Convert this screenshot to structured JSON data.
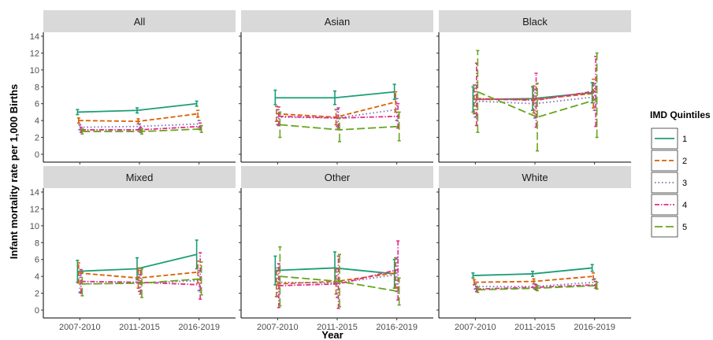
{
  "chart_data": {
    "type": "line",
    "xlabel": "Year",
    "ylabel": "Infant mortality rate per 1,000 Births",
    "ylim": [
      0,
      14
    ],
    "yticks": [
      0,
      2,
      4,
      6,
      8,
      10,
      12,
      14
    ],
    "categories": [
      "2007-2010",
      "2011-2015",
      "2016-2019"
    ],
    "legend": {
      "title": "IMD Quintiles",
      "position": "right",
      "entries": [
        "1",
        "2",
        "3",
        "4",
        "5"
      ]
    },
    "series_styles": [
      {
        "color": "#1b9e77",
        "dash": ""
      },
      {
        "color": "#d95f02",
        "dash": "6,3"
      },
      {
        "color": "#7570b3",
        "dash": "1.5,3"
      },
      {
        "color": "#e7298a",
        "dash": "6,2,1.5,2"
      },
      {
        "color": "#66a61e",
        "dash": "10,4"
      }
    ],
    "panels": [
      {
        "title": "All",
        "series": [
          {
            "name": "1",
            "values": [
              5.0,
              5.2,
              6.0
            ],
            "lower": [
              4.7,
              4.9,
              5.7
            ],
            "upper": [
              5.3,
              5.5,
              6.3
            ]
          },
          {
            "name": "2",
            "values": [
              4.0,
              3.9,
              4.8
            ],
            "lower": [
              3.7,
              3.6,
              4.4
            ],
            "upper": [
              4.3,
              4.2,
              5.2
            ]
          },
          {
            "name": "3",
            "values": [
              3.2,
              3.3,
              3.6
            ],
            "lower": [
              2.9,
              3.0,
              3.2
            ],
            "upper": [
              3.5,
              3.6,
              4.0
            ]
          },
          {
            "name": "4",
            "values": [
              2.9,
              2.9,
              3.3
            ],
            "lower": [
              2.6,
              2.6,
              2.9
            ],
            "upper": [
              3.2,
              3.2,
              3.7
            ]
          },
          {
            "name": "5",
            "values": [
              2.7,
              2.7,
              3.0
            ],
            "lower": [
              2.4,
              2.4,
              2.6
            ],
            "upper": [
              3.0,
              3.0,
              3.4
            ]
          }
        ]
      },
      {
        "title": "Asian",
        "series": [
          {
            "name": "1",
            "values": [
              6.7,
              6.7,
              7.4
            ],
            "lower": [
              5.9,
              5.9,
              6.5
            ],
            "upper": [
              7.6,
              7.5,
              8.3
            ]
          },
          {
            "name": "2",
            "values": [
              4.8,
              4.4,
              6.2
            ],
            "lower": [
              3.9,
              3.5,
              5.0
            ],
            "upper": [
              5.7,
              5.3,
              7.4
            ]
          },
          {
            "name": "3",
            "values": [
              4.4,
              4.3,
              5.3
            ],
            "lower": [
              3.5,
              3.3,
              4.0
            ],
            "upper": [
              5.3,
              5.3,
              6.6
            ]
          },
          {
            "name": "4",
            "values": [
              4.5,
              4.3,
              4.5
            ],
            "lower": [
              3.4,
              3.1,
              3.1
            ],
            "upper": [
              5.6,
              5.5,
              6.0
            ]
          },
          {
            "name": "5",
            "values": [
              3.5,
              2.9,
              3.3
            ],
            "lower": [
              2.0,
              1.5,
              1.6
            ],
            "upper": [
              5.0,
              4.3,
              5.0
            ]
          }
        ]
      },
      {
        "title": "Black",
        "series": [
          {
            "name": "1",
            "values": [
              6.5,
              6.6,
              7.3
            ],
            "lower": [
              5.0,
              5.2,
              6.1
            ],
            "upper": [
              8.0,
              8.0,
              8.5
            ]
          },
          {
            "name": "2",
            "values": [
              6.5,
              6.5,
              7.2
            ],
            "lower": [
              4.8,
              4.9,
              5.5
            ],
            "upper": [
              8.2,
              8.1,
              8.9
            ]
          },
          {
            "name": "3",
            "values": [
              6.3,
              6.0,
              6.8
            ],
            "lower": [
              4.4,
              4.3,
              5.2
            ],
            "upper": [
              8.2,
              7.7,
              8.4
            ]
          },
          {
            "name": "4",
            "values": [
              6.6,
              6.4,
              7.5
            ],
            "lower": [
              3.4,
              3.2,
              3.3
            ],
            "upper": [
              10.8,
              9.6,
              11.6
            ]
          },
          {
            "name": "5",
            "values": [
              7.4,
              4.4,
              6.5
            ],
            "lower": [
              2.6,
              0.4,
              2.0
            ],
            "upper": [
              12.3,
              8.4,
              12.0
            ]
          }
        ]
      },
      {
        "title": "Mixed",
        "series": [
          {
            "name": "1",
            "values": [
              4.6,
              4.9,
              6.6
            ],
            "lower": [
              3.3,
              3.6,
              4.9
            ],
            "upper": [
              5.9,
              6.2,
              8.3
            ]
          },
          {
            "name": "2",
            "values": [
              4.4,
              3.8,
              4.5
            ],
            "lower": [
              3.2,
              2.6,
              3.2
            ],
            "upper": [
              5.6,
              5.0,
              5.8
            ]
          },
          {
            "name": "3",
            "values": [
              3.1,
              3.2,
              3.5
            ],
            "lower": [
              2.1,
              2.2,
              2.3
            ],
            "upper": [
              4.1,
              4.2,
              4.7
            ]
          },
          {
            "name": "4",
            "values": [
              3.4,
              3.3,
              3.0
            ],
            "lower": [
              2.0,
              1.9,
              1.3
            ],
            "upper": [
              4.8,
              4.7,
              6.8
            ]
          },
          {
            "name": "5",
            "values": [
              3.1,
              3.2,
              3.7
            ],
            "lower": [
              1.7,
              1.5,
              1.8
            ],
            "upper": [
              4.5,
              4.9,
              5.7
            ]
          }
        ]
      },
      {
        "title": "Other",
        "series": [
          {
            "name": "1",
            "values": [
              4.7,
              5.0,
              4.3
            ],
            "lower": [
              3.0,
              3.2,
              2.6
            ],
            "upper": [
              6.4,
              6.9,
              6.0
            ]
          },
          {
            "name": "2",
            "values": [
              3.1,
              3.4,
              4.4
            ],
            "lower": [
              1.6,
              1.9,
              2.6
            ],
            "upper": [
              4.6,
              4.9,
              6.2
            ]
          },
          {
            "name": "3",
            "values": [
              3.3,
              3.2,
              4.2
            ],
            "lower": [
              1.6,
              1.5,
              2.2
            ],
            "upper": [
              5.0,
              4.9,
              6.2
            ]
          },
          {
            "name": "4",
            "values": [
              2.9,
              3.1,
              4.8
            ],
            "lower": [
              0.3,
              0.2,
              1.2
            ],
            "upper": [
              5.5,
              6.4,
              8.2
            ]
          },
          {
            "name": "5",
            "values": [
              4.0,
              3.4,
              2.2
            ],
            "lower": [
              0.5,
              0.4,
              0.6
            ],
            "upper": [
              7.5,
              6.6,
              3.8
            ]
          }
        ]
      },
      {
        "title": "White",
        "series": [
          {
            "name": "1",
            "values": [
              4.1,
              4.3,
              5.0
            ],
            "lower": [
              3.8,
              4.0,
              4.6
            ],
            "upper": [
              4.4,
              4.6,
              5.4
            ]
          },
          {
            "name": "2",
            "values": [
              3.3,
              3.4,
              4.0
            ],
            "lower": [
              3.0,
              3.1,
              3.6
            ],
            "upper": [
              3.6,
              3.7,
              4.4
            ]
          },
          {
            "name": "3",
            "values": [
              2.8,
              2.8,
              3.3
            ],
            "lower": [
              2.5,
              2.5,
              2.9
            ],
            "upper": [
              3.1,
              3.1,
              3.7
            ]
          },
          {
            "name": "4",
            "values": [
              2.5,
              2.7,
              3.0
            ],
            "lower": [
              2.2,
              2.4,
              2.6
            ],
            "upper": [
              2.8,
              3.0,
              3.4
            ]
          },
          {
            "name": "5",
            "values": [
              2.4,
              2.6,
              2.9
            ],
            "lower": [
              2.1,
              2.3,
              2.5
            ],
            "upper": [
              2.7,
              2.9,
              3.3
            ]
          }
        ]
      }
    ]
  }
}
